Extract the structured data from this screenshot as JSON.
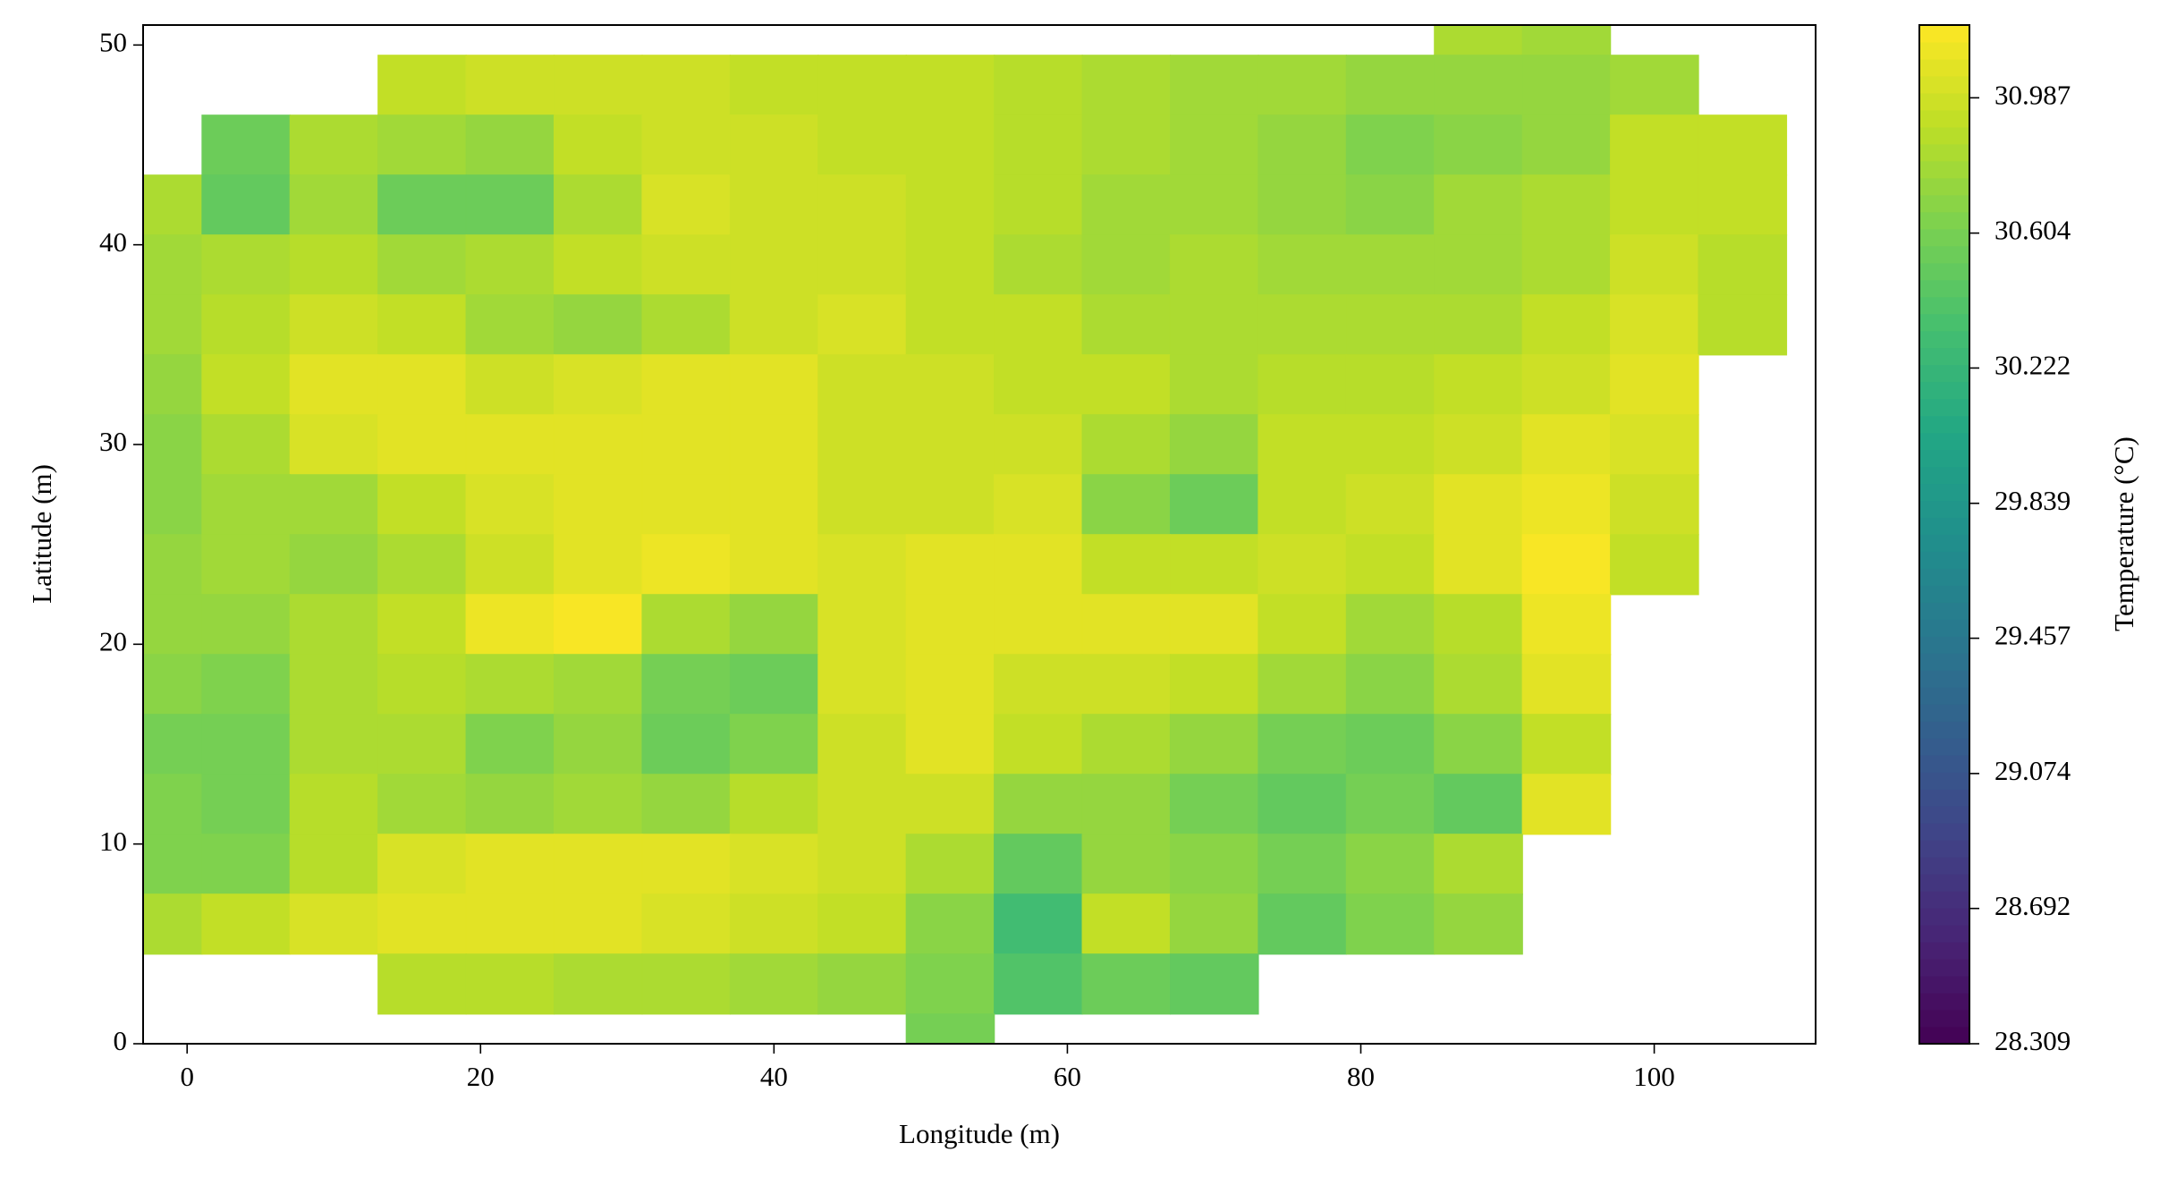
{
  "chart_data": {
    "type": "contour",
    "xlabel": "Longitude (m)",
    "ylabel": "Latitude (m)",
    "colorbar_label": "Temperature (°C)",
    "xlim": [
      -3,
      111
    ],
    "ylim": [
      0,
      51
    ],
    "xticks": [
      0,
      20,
      40,
      60,
      80,
      100
    ],
    "yticks": [
      0,
      10,
      20,
      30,
      40,
      50
    ],
    "clim": [
      28.309,
      31.193
    ],
    "levels": 60,
    "colormap": "viridis",
    "colorbar_ticks": [
      28.309,
      28.692,
      29.074,
      29.457,
      29.839,
      30.222,
      30.604,
      30.987
    ],
    "x": [
      -2,
      4,
      10,
      16,
      22,
      28,
      34,
      40,
      46,
      52,
      58,
      64,
      70,
      76,
      82,
      88,
      94,
      100,
      106
    ],
    "y": [
      51,
      48,
      45,
      42,
      39,
      36,
      33,
      30,
      27,
      24,
      21,
      18,
      15,
      12,
      9,
      6,
      3,
      0
    ],
    "z": [
      [
        null,
        null,
        null,
        null,
        null,
        null,
        null,
        null,
        null,
        null,
        null,
        null,
        null,
        null,
        null,
        30.85,
        30.8,
        null,
        null
      ],
      [
        null,
        null,
        null,
        30.95,
        31.0,
        31.0,
        30.98,
        30.95,
        30.95,
        30.92,
        30.9,
        30.85,
        30.8,
        30.78,
        30.75,
        30.72,
        30.75,
        30.8,
        null
      ],
      [
        null,
        30.55,
        30.85,
        30.8,
        30.75,
        30.95,
        31.0,
        30.98,
        30.95,
        30.92,
        30.88,
        30.85,
        30.78,
        30.72,
        30.62,
        30.7,
        30.75,
        30.92,
        30.95
      ],
      [
        30.85,
        30.5,
        30.8,
        30.55,
        30.55,
        30.85,
        31.02,
        31.0,
        30.98,
        30.95,
        30.88,
        30.8,
        30.78,
        30.72,
        30.7,
        30.78,
        30.82,
        30.95,
        30.92
      ],
      [
        30.8,
        30.85,
        30.9,
        30.78,
        30.85,
        30.95,
        31.0,
        31.0,
        31.0,
        30.95,
        30.85,
        30.78,
        30.82,
        30.8,
        30.78,
        30.8,
        30.85,
        31.0,
        30.9
      ],
      [
        30.8,
        30.9,
        31.0,
        30.95,
        30.78,
        30.75,
        30.85,
        31.0,
        31.02,
        30.95,
        30.92,
        30.85,
        30.85,
        30.85,
        30.82,
        30.85,
        30.95,
        31.02,
        30.88
      ],
      [
        30.75,
        30.95,
        31.05,
        31.05,
        31.0,
        31.02,
        31.05,
        31.05,
        31.0,
        30.98,
        30.95,
        30.92,
        30.85,
        30.88,
        30.88,
        30.95,
        31.0,
        31.05,
        null
      ],
      [
        30.7,
        30.85,
        31.02,
        31.08,
        31.08,
        31.08,
        31.08,
        31.05,
        30.98,
        30.98,
        30.98,
        30.85,
        30.72,
        30.92,
        30.95,
        31.0,
        31.08,
        31.02,
        null
      ],
      [
        30.7,
        30.8,
        30.78,
        30.95,
        31.02,
        31.08,
        31.08,
        31.05,
        30.98,
        31.0,
        31.02,
        30.7,
        30.55,
        30.95,
        31.0,
        31.08,
        31.12,
        30.98,
        null
      ],
      [
        30.72,
        30.8,
        30.75,
        30.85,
        31.0,
        31.08,
        31.1,
        31.05,
        31.02,
        31.05,
        31.05,
        30.95,
        30.92,
        31.0,
        30.92,
        31.05,
        31.15,
        30.95,
        null
      ],
      [
        30.75,
        30.72,
        30.85,
        30.95,
        31.1,
        31.15,
        30.85,
        30.75,
        31.02,
        31.08,
        31.08,
        31.08,
        31.05,
        30.95,
        30.78,
        30.9,
        31.12,
        null,
        null
      ],
      [
        30.7,
        30.65,
        30.85,
        30.9,
        30.82,
        30.8,
        30.6,
        30.55,
        31.02,
        31.05,
        31.0,
        30.98,
        30.92,
        30.78,
        30.68,
        30.82,
        31.05,
        null,
        null
      ],
      [
        30.6,
        30.58,
        30.85,
        30.82,
        30.62,
        30.75,
        30.55,
        30.65,
        30.98,
        31.05,
        30.95,
        30.85,
        30.75,
        30.6,
        30.55,
        30.7,
        30.95,
        null,
        null
      ],
      [
        30.62,
        30.6,
        30.88,
        30.78,
        30.72,
        30.78,
        30.75,
        30.88,
        30.98,
        31.0,
        30.75,
        30.72,
        30.6,
        30.48,
        30.6,
        30.5,
        31.05,
        null,
        null
      ],
      [
        30.65,
        30.62,
        30.9,
        31.02,
        31.05,
        31.08,
        31.08,
        31.02,
        31.0,
        30.85,
        30.5,
        30.75,
        30.7,
        30.58,
        30.7,
        30.82,
        null,
        null,
        null
      ],
      [
        30.85,
        30.92,
        31.02,
        31.05,
        31.05,
        31.08,
        31.02,
        30.98,
        30.95,
        30.7,
        30.3,
        30.95,
        30.72,
        30.5,
        30.65,
        30.75,
        null,
        null,
        null
      ],
      [
        null,
        null,
        null,
        30.9,
        30.88,
        30.85,
        30.82,
        30.78,
        30.75,
        30.62,
        30.42,
        30.55,
        30.5,
        null,
        null,
        null,
        null,
        null,
        null
      ],
      [
        null,
        null,
        null,
        null,
        null,
        null,
        null,
        null,
        null,
        30.6,
        null,
        null,
        null,
        null,
        null,
        null,
        null,
        null,
        null
      ]
    ]
  }
}
